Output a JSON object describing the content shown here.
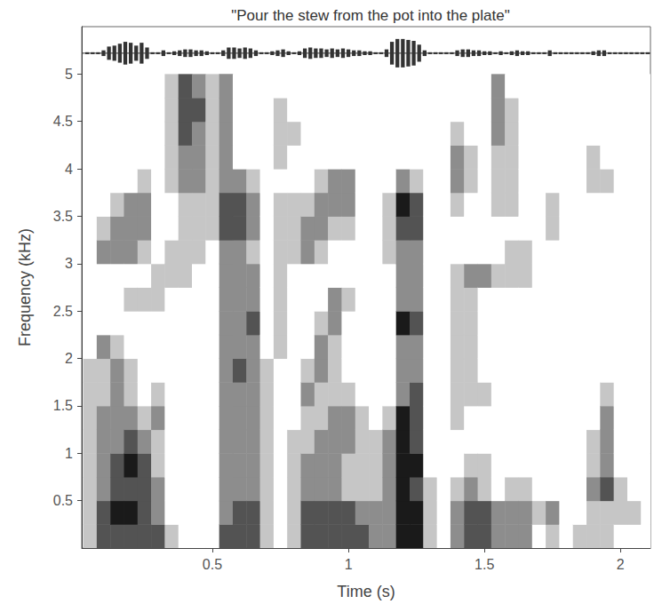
{
  "chart_data": {
    "type": "heatmap",
    "title": "\"Pour the stew from the pot into the plate\"",
    "xlabel": "Time (s)",
    "ylabel": "Frequency (kHz)",
    "xlim": [
      0.02,
      2.11
    ],
    "ylim": [
      0,
      5.5
    ],
    "xticks": [
      0.5,
      1,
      1.5,
      2
    ],
    "yticks": [
      0.5,
      1,
      1.5,
      2,
      2.5,
      3,
      3.5,
      4,
      4.5,
      5
    ],
    "grid": false,
    "color": "#1a1a1a",
    "time": [
      0.05,
      0.1,
      0.15,
      0.2,
      0.25,
      0.3,
      0.35,
      0.4,
      0.45,
      0.5,
      0.55,
      0.6,
      0.65,
      0.7,
      0.75,
      0.8,
      0.85,
      0.9,
      0.95,
      1.0,
      1.05,
      1.1,
      1.15,
      1.2,
      1.25,
      1.3,
      1.35,
      1.4,
      1.45,
      1.5,
      1.55,
      1.6,
      1.65,
      1.7,
      1.75,
      1.8,
      1.85,
      1.9,
      1.95,
      2.0,
      2.05,
      2.1
    ],
    "frequency": [
      0.125,
      0.375,
      0.625,
      0.875,
      1.125,
      1.375,
      1.625,
      1.875,
      2.125,
      2.375,
      2.625,
      2.875,
      3.125,
      3.375,
      3.625,
      3.875,
      4.125,
      4.375,
      4.625,
      4.875
    ],
    "intensity_range": [
      0,
      4
    ],
    "intensity": [
      [
        1,
        1,
        1,
        1,
        1,
        1,
        1,
        1,
        0,
        0,
        0,
        0,
        0,
        0,
        0,
        0,
        0,
        0,
        0,
        0
      ],
      [
        3,
        3,
        2,
        2,
        2,
        2,
        1,
        1,
        2,
        0,
        0,
        0,
        2,
        1,
        0,
        0,
        0,
        0,
        0,
        0
      ],
      [
        3,
        4,
        3,
        3,
        2,
        2,
        2,
        2,
        1,
        0,
        0,
        0,
        2,
        2,
        1,
        0,
        0,
        0,
        0,
        0
      ],
      [
        3,
        4,
        3,
        4,
        3,
        2,
        1,
        1,
        0,
        0,
        1,
        0,
        2,
        2,
        2,
        0,
        0,
        0,
        0,
        0
      ],
      [
        3,
        3,
        3,
        3,
        2,
        1,
        0,
        0,
        0,
        0,
        1,
        0,
        1,
        2,
        2,
        1,
        0,
        0,
        0,
        0
      ],
      [
        3,
        2,
        2,
        1,
        1,
        2,
        1,
        0,
        0,
        0,
        1,
        1,
        0,
        0,
        0,
        0,
        0,
        0,
        0,
        0
      ],
      [
        1,
        0,
        0,
        0,
        0,
        0,
        0,
        0,
        0,
        0,
        0,
        1,
        1,
        0,
        0,
        1,
        1,
        1,
        1,
        1
      ],
      [
        0,
        0,
        0,
        0,
        0,
        0,
        0,
        0,
        0,
        0,
        0,
        1,
        1,
        1,
        1,
        2,
        2,
        3,
        3,
        3
      ],
      [
        0,
        0,
        0,
        0,
        0,
        0,
        0,
        0,
        0,
        0,
        0,
        0,
        1,
        1,
        1,
        2,
        2,
        2,
        3,
        2
      ],
      [
        0,
        0,
        0,
        0,
        0,
        0,
        0,
        0,
        0,
        0,
        0,
        0,
        0,
        1,
        1,
        1,
        1,
        1,
        1,
        1
      ],
      [
        3,
        2,
        2,
        2,
        2,
        2,
        2,
        2,
        2,
        2,
        2,
        2,
        2,
        3,
        3,
        2,
        2,
        2,
        2,
        2
      ],
      [
        3,
        3,
        2,
        2,
        2,
        2,
        2,
        3,
        2,
        2,
        2,
        2,
        2,
        3,
        3,
        2,
        0,
        0,
        0,
        0
      ],
      [
        3,
        3,
        2,
        2,
        2,
        2,
        2,
        2,
        2,
        3,
        2,
        2,
        1,
        2,
        2,
        1,
        0,
        0,
        0,
        0
      ],
      [
        1,
        1,
        1,
        1,
        1,
        1,
        1,
        1,
        0,
        0,
        0,
        0,
        0,
        0,
        0,
        0,
        0,
        0,
        0,
        0
      ],
      [
        0,
        0,
        0,
        0,
        0,
        0,
        0,
        0,
        1,
        1,
        1,
        1,
        1,
        1,
        1,
        0,
        1,
        1,
        1,
        0
      ],
      [
        1,
        1,
        1,
        1,
        1,
        0,
        0,
        0,
        0,
        0,
        0,
        0,
        1,
        1,
        1,
        0,
        0,
        1,
        0,
        0
      ],
      [
        3,
        3,
        2,
        2,
        1,
        1,
        2,
        1,
        0,
        0,
        0,
        0,
        2,
        2,
        1,
        0,
        0,
        0,
        0,
        0
      ],
      [
        3,
        3,
        2,
        2,
        2,
        1,
        1,
        2,
        2,
        1,
        0,
        0,
        1,
        2,
        2,
        1,
        0,
        0,
        0,
        0
      ],
      [
        3,
        3,
        2,
        2,
        2,
        2,
        1,
        1,
        1,
        2,
        2,
        0,
        0,
        1,
        2,
        2,
        0,
        0,
        0,
        0
      ],
      [
        3,
        3,
        1,
        1,
        2,
        2,
        1,
        0,
        0,
        0,
        1,
        0,
        0,
        1,
        2,
        2,
        0,
        0,
        0,
        0
      ],
      [
        3,
        2,
        1,
        1,
        1,
        1,
        0,
        0,
        0,
        0,
        0,
        0,
        0,
        0,
        0,
        0,
        0,
        0,
        0,
        0
      ],
      [
        2,
        2,
        1,
        1,
        1,
        0,
        0,
        0,
        0,
        0,
        0,
        0,
        0,
        0,
        0,
        0,
        0,
        0,
        0,
        0
      ],
      [
        2,
        2,
        2,
        2,
        2,
        1,
        0,
        0,
        0,
        0,
        0,
        0,
        1,
        1,
        1,
        0,
        0,
        0,
        0,
        0
      ],
      [
        4,
        4,
        4,
        4,
        4,
        4,
        2,
        2,
        2,
        4,
        2,
        2,
        2,
        3,
        4,
        2,
        0,
        0,
        0,
        0
      ],
      [
        4,
        4,
        3,
        4,
        3,
        3,
        3,
        2,
        2,
        3,
        2,
        2,
        2,
        3,
        3,
        1,
        0,
        0,
        0,
        0
      ],
      [
        1,
        1,
        1,
        0,
        0,
        0,
        0,
        0,
        0,
        0,
        0,
        0,
        0,
        0,
        0,
        0,
        0,
        0,
        0,
        0
      ],
      [
        0,
        0,
        0,
        0,
        0,
        0,
        0,
        0,
        0,
        0,
        0,
        0,
        0,
        0,
        0,
        0,
        0,
        0,
        0,
        0
      ],
      [
        2,
        2,
        1,
        0,
        0,
        1,
        1,
        1,
        1,
        1,
        1,
        1,
        0,
        0,
        1,
        2,
        2,
        1,
        0,
        0
      ],
      [
        3,
        3,
        2,
        1,
        0,
        0,
        1,
        1,
        1,
        1,
        1,
        2,
        0,
        0,
        0,
        1,
        1,
        0,
        0,
        0
      ],
      [
        3,
        3,
        1,
        1,
        0,
        0,
        1,
        0,
        0,
        0,
        0,
        2,
        0,
        0,
        0,
        0,
        0,
        0,
        0,
        0
      ],
      [
        2,
        2,
        0,
        0,
        0,
        0,
        0,
        0,
        0,
        0,
        0,
        1,
        0,
        0,
        1,
        1,
        1,
        2,
        2,
        2
      ],
      [
        2,
        2,
        1,
        0,
        0,
        0,
        0,
        0,
        0,
        0,
        0,
        1,
        1,
        0,
        1,
        1,
        1,
        1,
        1,
        0
      ],
      [
        2,
        2,
        1,
        0,
        0,
        0,
        0,
        0,
        0,
        0,
        0,
        1,
        1,
        0,
        0,
        0,
        0,
        0,
        0,
        0
      ],
      [
        0,
        1,
        0,
        0,
        0,
        0,
        0,
        0,
        0,
        0,
        0,
        0,
        0,
        0,
        0,
        0,
        0,
        0,
        0,
        0
      ],
      [
        1,
        2,
        0,
        0,
        0,
        0,
        0,
        0,
        0,
        0,
        0,
        0,
        0,
        1,
        1,
        0,
        0,
        0,
        0,
        0
      ],
      [
        0,
        0,
        0,
        0,
        0,
        0,
        0,
        0,
        0,
        0,
        0,
        0,
        0,
        0,
        0,
        0,
        0,
        0,
        0,
        0
      ],
      [
        1,
        0,
        0,
        0,
        0,
        0,
        0,
        0,
        0,
        0,
        0,
        0,
        0,
        0,
        0,
        0,
        0,
        0,
        0,
        0
      ],
      [
        1,
        1,
        2,
        1,
        1,
        0,
        0,
        0,
        0,
        0,
        0,
        0,
        0,
        0,
        0,
        1,
        1,
        0,
        0,
        0
      ],
      [
        1,
        1,
        3,
        2,
        2,
        2,
        1,
        0,
        0,
        0,
        0,
        0,
        0,
        0,
        0,
        1,
        0,
        0,
        0,
        0
      ],
      [
        0,
        1,
        1,
        0,
        0,
        0,
        0,
        0,
        0,
        0,
        0,
        0,
        0,
        0,
        0,
        0,
        0,
        0,
        0,
        0
      ],
      [
        0,
        1,
        0,
        0,
        0,
        0,
        0,
        0,
        0,
        0,
        0,
        0,
        0,
        0,
        0,
        0,
        0,
        0,
        0,
        0
      ],
      [
        0,
        0,
        0,
        0,
        0,
        0,
        0,
        0,
        0,
        0,
        0,
        0,
        0,
        0,
        0,
        0,
        0,
        0,
        0,
        0
      ]
    ],
    "waveform": {
      "color": "#333333",
      "center": 5.22,
      "time": [
        0.04,
        0.06,
        0.08,
        0.1,
        0.12,
        0.14,
        0.16,
        0.18,
        0.2,
        0.22,
        0.24,
        0.26,
        0.28,
        0.3,
        0.32,
        0.34,
        0.36,
        0.38,
        0.4,
        0.42,
        0.44,
        0.46,
        0.48,
        0.5,
        0.52,
        0.54,
        0.56,
        0.58,
        0.6,
        0.62,
        0.64,
        0.66,
        0.68,
        0.7,
        0.72,
        0.74,
        0.76,
        0.78,
        0.8,
        0.82,
        0.84,
        0.86,
        0.88,
        0.9,
        0.92,
        0.94,
        0.96,
        0.98,
        1.0,
        1.02,
        1.04,
        1.06,
        1.08,
        1.1,
        1.12,
        1.14,
        1.16,
        1.18,
        1.2,
        1.22,
        1.24,
        1.26,
        1.28,
        1.3,
        1.32,
        1.34,
        1.36,
        1.38,
        1.4,
        1.42,
        1.44,
        1.46,
        1.48,
        1.5,
        1.52,
        1.54,
        1.56,
        1.58,
        1.6,
        1.62,
        1.64,
        1.66,
        1.68,
        1.7,
        1.72,
        1.74,
        1.76,
        1.78,
        1.8,
        1.82,
        1.84,
        1.86,
        1.88,
        1.9,
        1.92,
        1.94,
        1.96,
        1.98,
        2.0,
        2.02,
        2.04,
        2.06,
        2.08,
        2.1
      ],
      "amplitude": [
        0.01,
        0.01,
        0.01,
        0.03,
        0.07,
        0.08,
        0.1,
        0.12,
        0.11,
        0.08,
        0.11,
        0.06,
        0.01,
        0.01,
        0.03,
        0.01,
        0.02,
        0.03,
        0.04,
        0.04,
        0.03,
        0.03,
        0.02,
        0.01,
        0.01,
        0.03,
        0.06,
        0.06,
        0.05,
        0.06,
        0.05,
        0.03,
        0.01,
        0.01,
        0.02,
        0.03,
        0.04,
        0.02,
        0.01,
        0.02,
        0.05,
        0.06,
        0.05,
        0.05,
        0.04,
        0.05,
        0.04,
        0.05,
        0.04,
        0.03,
        0.03,
        0.02,
        0.02,
        0.01,
        0.01,
        0.04,
        0.12,
        0.15,
        0.15,
        0.14,
        0.13,
        0.09,
        0.03,
        0.01,
        0.01,
        0.01,
        0.01,
        0.01,
        0.03,
        0.04,
        0.04,
        0.03,
        0.03,
        0.02,
        0.02,
        0.01,
        0.02,
        0.01,
        0.02,
        0.03,
        0.02,
        0.02,
        0.01,
        0.01,
        0.01,
        0.03,
        0.01,
        0.01,
        0.01,
        0.01,
        0.01,
        0.01,
        0.01,
        0.02,
        0.03,
        0.03,
        0.01,
        0.01,
        0.01,
        0.01,
        0.01,
        0.01,
        0.01,
        0.01
      ]
    }
  }
}
